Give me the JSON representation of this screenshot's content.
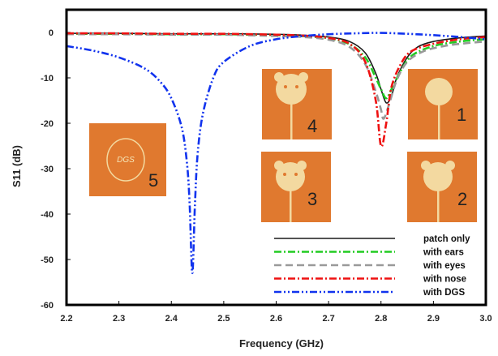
{
  "chart_data": {
    "type": "line",
    "title": "",
    "xlabel": "Frequency (GHz)",
    "ylabel": "S11 (dB)",
    "xlim": [
      2.2,
      3.0
    ],
    "ylim": [
      -60,
      5
    ],
    "xticks": [
      "2.2",
      "2.3",
      "2.4",
      "2.5",
      "2.6",
      "2.7",
      "2.8",
      "2.9",
      "3.0"
    ],
    "yticks": [
      "0",
      "-10",
      "-20",
      "-30",
      "-40",
      "-50",
      "-60"
    ],
    "grid": false,
    "legend_position": "bottom-right",
    "series": [
      {
        "name": "patch only",
        "color": "#1a1a1a",
        "dash": "solid",
        "points": [
          [
            2.2,
            -0.2
          ],
          [
            2.3,
            -0.2
          ],
          [
            2.4,
            -0.3
          ],
          [
            2.5,
            -0.3
          ],
          [
            2.6,
            -0.4
          ],
          [
            2.65,
            -0.6
          ],
          [
            2.7,
            -1.0
          ],
          [
            2.74,
            -2.0
          ],
          [
            2.77,
            -4.5
          ],
          [
            2.79,
            -9.0
          ],
          [
            2.8,
            -12.5
          ],
          [
            2.81,
            -15.5
          ],
          [
            2.82,
            -14.0
          ],
          [
            2.83,
            -10.0
          ],
          [
            2.85,
            -5.5
          ],
          [
            2.87,
            -3.2
          ],
          [
            2.9,
            -2.0
          ],
          [
            2.95,
            -1.2
          ],
          [
            3.0,
            -0.8
          ]
        ]
      },
      {
        "name": "with ears",
        "color": "#22cc22",
        "dash": "dashdot",
        "points": [
          [
            2.2,
            -0.3
          ],
          [
            2.3,
            -0.3
          ],
          [
            2.4,
            -0.4
          ],
          [
            2.5,
            -0.4
          ],
          [
            2.6,
            -0.6
          ],
          [
            2.65,
            -0.8
          ],
          [
            2.7,
            -1.3
          ],
          [
            2.74,
            -2.6
          ],
          [
            2.77,
            -5.5
          ],
          [
            2.79,
            -10.0
          ],
          [
            2.8,
            -12.5
          ],
          [
            2.81,
            -14.5
          ],
          [
            2.82,
            -12.5
          ],
          [
            2.84,
            -8.0
          ],
          [
            2.86,
            -5.0
          ],
          [
            2.9,
            -3.0
          ],
          [
            2.95,
            -2.0
          ],
          [
            3.0,
            -1.5
          ]
        ]
      },
      {
        "name": "with eyes",
        "color": "#999999",
        "dash": "dashed",
        "points": [
          [
            2.2,
            -0.4
          ],
          [
            2.3,
            -0.4
          ],
          [
            2.4,
            -0.5
          ],
          [
            2.5,
            -0.5
          ],
          [
            2.6,
            -0.8
          ],
          [
            2.65,
            -1.0
          ],
          [
            2.7,
            -1.6
          ],
          [
            2.74,
            -3.2
          ],
          [
            2.77,
            -7.0
          ],
          [
            2.79,
            -13.0
          ],
          [
            2.8,
            -17.0
          ],
          [
            2.805,
            -19.0
          ],
          [
            2.815,
            -16.0
          ],
          [
            2.83,
            -10.5
          ],
          [
            2.85,
            -6.5
          ],
          [
            2.88,
            -4.2
          ],
          [
            2.92,
            -3.0
          ],
          [
            2.96,
            -2.4
          ],
          [
            3.0,
            -2.0
          ]
        ]
      },
      {
        "name": "with nose",
        "color": "#ee1111",
        "dash": "dashdot",
        "points": [
          [
            2.2,
            -0.2
          ],
          [
            2.3,
            -0.2
          ],
          [
            2.4,
            -0.3
          ],
          [
            2.5,
            -0.3
          ],
          [
            2.6,
            -0.5
          ],
          [
            2.65,
            -0.7
          ],
          [
            2.7,
            -1.2
          ],
          [
            2.74,
            -2.5
          ],
          [
            2.77,
            -6.5
          ],
          [
            2.79,
            -15.0
          ],
          [
            2.8,
            -25.0
          ],
          [
            2.81,
            -20.0
          ],
          [
            2.82,
            -12.0
          ],
          [
            2.84,
            -6.5
          ],
          [
            2.86,
            -4.0
          ],
          [
            2.9,
            -2.5
          ],
          [
            2.95,
            -1.5
          ],
          [
            3.0,
            -1.0
          ]
        ]
      },
      {
        "name": "with DGS",
        "color": "#1133ee",
        "dash": "dashdotdot",
        "points": [
          [
            2.2,
            -3.0
          ],
          [
            2.25,
            -4.0
          ],
          [
            2.3,
            -5.5
          ],
          [
            2.35,
            -8.0
          ],
          [
            2.38,
            -11.0
          ],
          [
            2.4,
            -14.5
          ],
          [
            2.42,
            -21.0
          ],
          [
            2.43,
            -29.0
          ],
          [
            2.435,
            -38.0
          ],
          [
            2.44,
            -53.0
          ],
          [
            2.445,
            -38.0
          ],
          [
            2.45,
            -27.0
          ],
          [
            2.46,
            -18.0
          ],
          [
            2.48,
            -10.0
          ],
          [
            2.5,
            -6.5
          ],
          [
            2.55,
            -3.0
          ],
          [
            2.6,
            -1.5
          ],
          [
            2.65,
            -0.8
          ],
          [
            2.7,
            -0.4
          ],
          [
            2.75,
            -0.2
          ],
          [
            2.8,
            -0.1
          ],
          [
            2.85,
            -0.3
          ],
          [
            2.9,
            -0.6
          ],
          [
            2.95,
            -1.0
          ],
          [
            3.0,
            -1.5
          ]
        ]
      }
    ],
    "insets": [
      {
        "label": "4",
        "shape": "bear-face-with-eyes"
      },
      {
        "label": "1",
        "shape": "plain-circle"
      },
      {
        "label": "5",
        "shape": "dgs-ring",
        "text": "DGS"
      },
      {
        "label": "3",
        "shape": "bear-face-with-eyes-nose"
      },
      {
        "label": "2",
        "shape": "bear-face-with-ears"
      }
    ]
  }
}
